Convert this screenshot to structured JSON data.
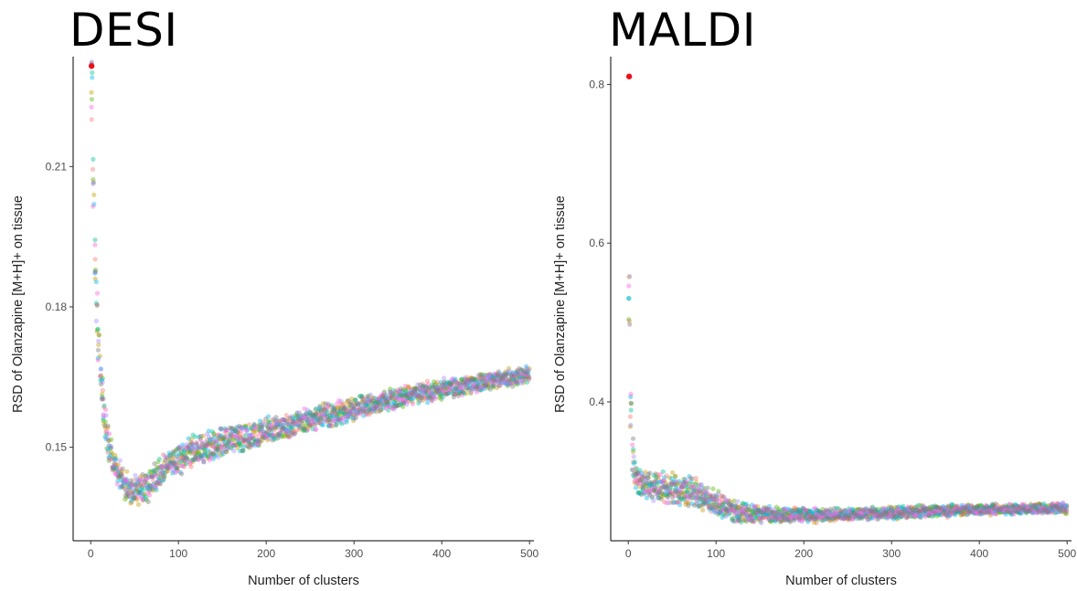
{
  "chart_data": [
    {
      "type": "scatter",
      "title": "DESI",
      "xlabel": "Number of clusters",
      "ylabel": "RSD of Olanzapine [M+H]+ on tissue",
      "xlim": [
        -20,
        505
      ],
      "ylim": [
        0.13,
        0.2335
      ],
      "xticks": [
        0,
        100,
        200,
        300,
        400,
        500
      ],
      "xtick_labels": [
        "0",
        "100",
        "200",
        "300",
        "400",
        "500"
      ],
      "yticks": [
        0.15,
        0.18,
        0.21
      ],
      "ytick_labels": [
        "0.15",
        "0.18",
        "0.21"
      ],
      "grid": false,
      "highlight_point": {
        "x": 1,
        "y": 0.2315,
        "color": "#e8131b"
      },
      "trend": {
        "x": [
          1,
          3,
          5,
          8,
          12,
          16,
          20,
          25,
          30,
          40,
          50,
          60,
          70,
          80,
          90,
          100,
          120,
          150,
          200,
          250,
          300,
          350,
          400,
          450,
          500
        ],
        "y": [
          0.228,
          0.206,
          0.19,
          0.175,
          0.163,
          0.156,
          0.151,
          0.147,
          0.1445,
          0.1415,
          0.1405,
          0.141,
          0.1425,
          0.1445,
          0.1465,
          0.1475,
          0.1495,
          0.1512,
          0.1535,
          0.1558,
          0.1582,
          0.1605,
          0.1625,
          0.164,
          0.1655
        ]
      },
      "spread": [
        0.0055,
        0.005,
        0.0045,
        0.004,
        0.0035,
        0.0032,
        0.003,
        0.0028,
        0.0026,
        0.0025,
        0.0025,
        0.0025,
        0.0025,
        0.0025,
        0.0025,
        0.0025,
        0.0025,
        0.0024,
        0.0022,
        0.002,
        0.0018,
        0.0017,
        0.0016,
        0.0015,
        0.0013
      ],
      "series_colors": [
        "#f8766d",
        "#c49a00",
        "#53b400",
        "#00c094",
        "#00b6eb",
        "#a58aff",
        "#fb61d7",
        "#7a7a7a"
      ]
    },
    {
      "type": "scatter",
      "title": "MALDI",
      "xlabel": "Number of clusters",
      "ylabel": "RSD of Olanzapine [M+H]+ on tissue",
      "xlim": [
        -20,
        505
      ],
      "ylim": [
        0.225,
        0.835
      ],
      "xticks": [
        0,
        100,
        200,
        300,
        400,
        500
      ],
      "xtick_labels": [
        "0",
        "100",
        "200",
        "300",
        "400",
        "500"
      ],
      "yticks": [
        0.4,
        0.6,
        0.8
      ],
      "ytick_labels": [
        "0.4",
        "0.6",
        "0.8"
      ],
      "grid": false,
      "highlight_point": {
        "x": 1,
        "y": 0.81,
        "color": "#e8131b"
      },
      "trend": {
        "x": [
          1,
          3,
          5,
          8,
          12,
          20,
          40,
          60,
          80,
          100,
          120,
          150,
          200,
          250,
          300,
          350,
          400,
          450,
          500
        ],
        "y": [
          0.52,
          0.38,
          0.33,
          0.305,
          0.298,
          0.295,
          0.292,
          0.288,
          0.282,
          0.272,
          0.262,
          0.258,
          0.257,
          0.258,
          0.26,
          0.262,
          0.264,
          0.265,
          0.266
        ]
      },
      "spread": [
        0.05,
        0.03,
        0.02,
        0.012,
        0.012,
        0.012,
        0.014,
        0.015,
        0.014,
        0.012,
        0.01,
        0.008,
        0.007,
        0.006,
        0.006,
        0.006,
        0.005,
        0.005,
        0.005
      ],
      "series_colors": [
        "#f8766d",
        "#c49a00",
        "#53b400",
        "#00c094",
        "#00b6eb",
        "#a58aff",
        "#fb61d7",
        "#7a7a7a"
      ]
    }
  ]
}
